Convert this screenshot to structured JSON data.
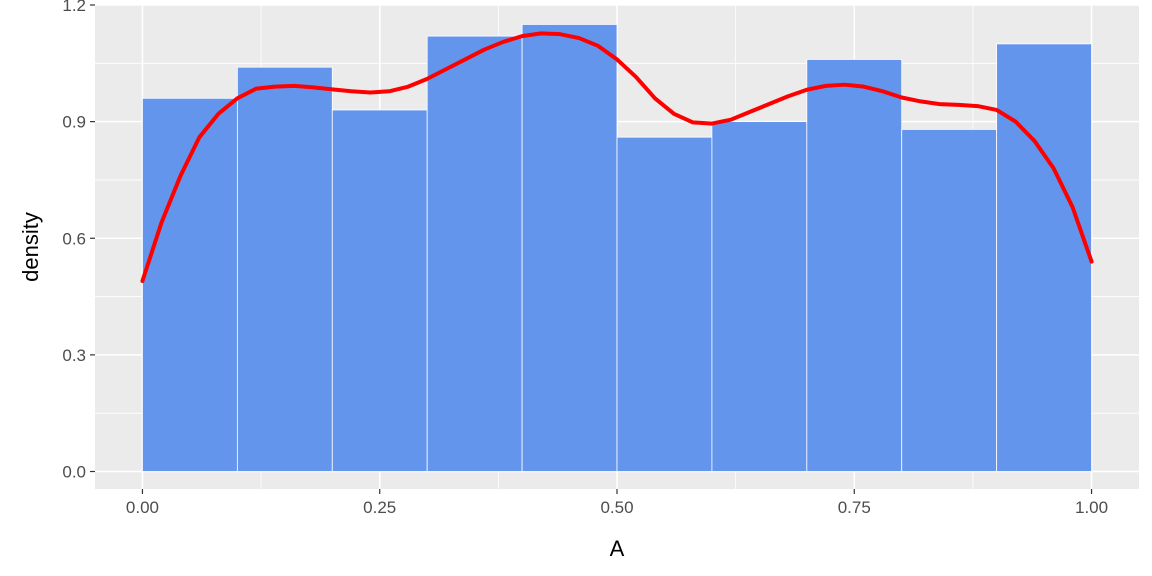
{
  "chart_data": {
    "type": "bar",
    "title": "",
    "xlabel": "A",
    "ylabel": "density",
    "xlim": [
      -0.05,
      1.05
    ],
    "ylim": [
      -0.045,
      1.2
    ],
    "x_ticks": [
      0,
      0.25,
      0.5,
      0.75,
      1
    ],
    "x_tick_labels": [
      "0.00",
      "0.25",
      "0.50",
      "0.75",
      "1.00"
    ],
    "y_ticks": [
      0,
      0.3,
      0.6,
      0.9,
      1.2
    ],
    "y_tick_labels": [
      "0.0",
      "0.3",
      "0.6",
      "0.9",
      "1.2"
    ],
    "grid": true,
    "histogram": {
      "bin_edges": [
        0,
        0.1,
        0.2,
        0.3,
        0.4,
        0.5,
        0.6,
        0.7,
        0.8,
        0.9,
        1.0
      ],
      "values": [
        0.96,
        1.04,
        0.93,
        1.12,
        1.15,
        0.86,
        0.9,
        1.06,
        0.88,
        1.1
      ]
    },
    "density_curve": {
      "x": [
        0.0,
        0.02,
        0.04,
        0.06,
        0.08,
        0.1,
        0.12,
        0.14,
        0.16,
        0.18,
        0.2,
        0.22,
        0.24,
        0.26,
        0.28,
        0.3,
        0.32,
        0.34,
        0.36,
        0.38,
        0.4,
        0.42,
        0.44,
        0.46,
        0.48,
        0.5,
        0.52,
        0.54,
        0.56,
        0.58,
        0.6,
        0.62,
        0.64,
        0.66,
        0.68,
        0.7,
        0.72,
        0.74,
        0.76,
        0.78,
        0.8,
        0.82,
        0.84,
        0.86,
        0.88,
        0.9,
        0.92,
        0.94,
        0.96,
        0.98,
        1.0
      ],
      "y": [
        0.49,
        0.64,
        0.76,
        0.86,
        0.92,
        0.96,
        0.985,
        0.99,
        0.992,
        0.988,
        0.983,
        0.978,
        0.975,
        0.978,
        0.99,
        1.01,
        1.035,
        1.06,
        1.085,
        1.105,
        1.12,
        1.127,
        1.125,
        1.115,
        1.095,
        1.06,
        1.015,
        0.96,
        0.92,
        0.898,
        0.895,
        0.905,
        0.925,
        0.945,
        0.965,
        0.982,
        0.992,
        0.995,
        0.99,
        0.978,
        0.962,
        0.952,
        0.945,
        0.943,
        0.94,
        0.93,
        0.9,
        0.85,
        0.78,
        0.68,
        0.54
      ],
      "color": "#ff0000"
    },
    "bar_color": "#6495ed",
    "panel_background": "#ebebeb",
    "grid_color": "#ffffff"
  }
}
